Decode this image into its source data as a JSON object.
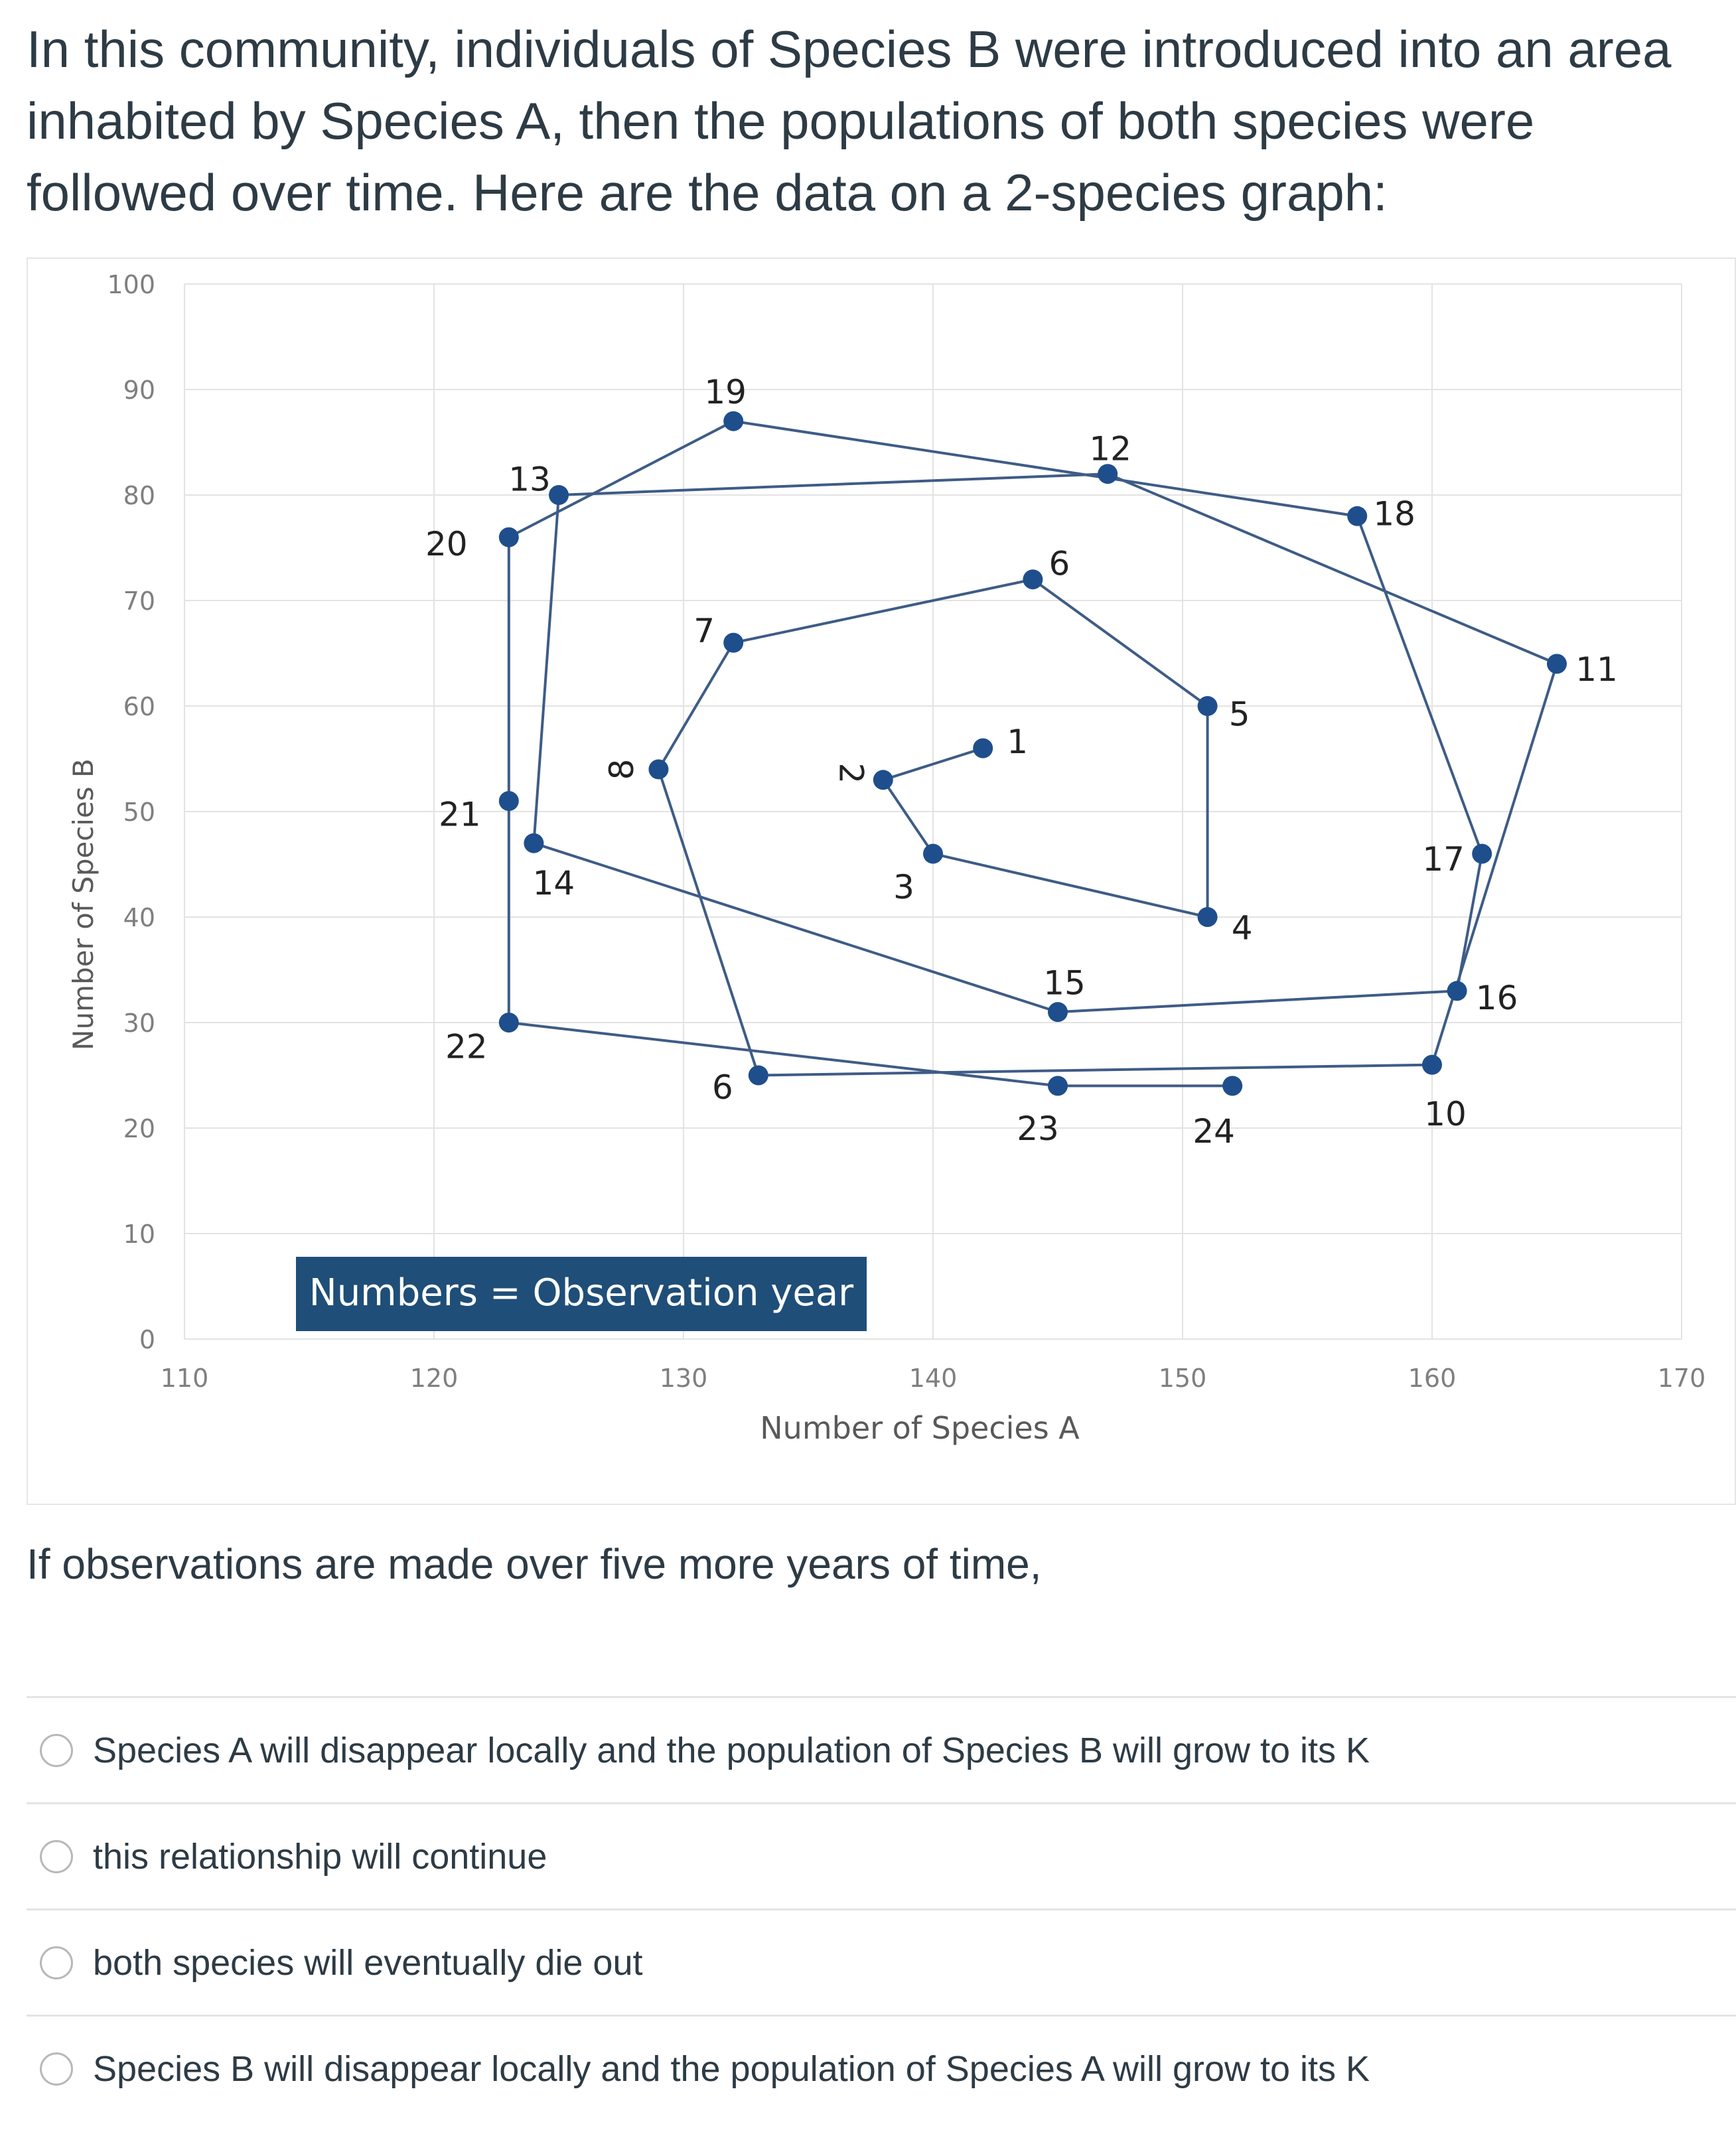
{
  "question": {
    "intro": "In this community, individuals of Species B were introduced into an area inhabited by Species A, then the populations of both species were followed over time.  Here are the data on a 2-species graph:",
    "stem": "If observations are made over five more years of time,"
  },
  "answers": [
    {
      "label": "Species A will disappear locally and the population of Species B will grow to its K",
      "selected": false
    },
    {
      "label": "this relationship will continue",
      "selected": false
    },
    {
      "label": "both species will eventually die out",
      "selected": false
    },
    {
      "label": "Species B will disappear locally and the population of Species A will grow to its K",
      "selected": false
    }
  ],
  "colors": {
    "series": "#3e5c86",
    "point": "#1f4e8c",
    "annotation_bg": "#1f4e79",
    "annotation_text": "#ffffff",
    "grid": "#e3e3e3",
    "axis_text": "#7f7f7f"
  },
  "chart_data": {
    "type": "scatter",
    "connected": true,
    "xlabel": "Number of Species A",
    "ylabel": "Number of Species B",
    "xlim": [
      110,
      170
    ],
    "ylim": [
      0,
      100
    ],
    "x_ticks": [
      "110",
      "120",
      "130",
      "140",
      "150",
      "160",
      "170"
    ],
    "y_ticks": [
      "0",
      "10",
      "20",
      "30",
      "40",
      "50",
      "60",
      "70",
      "80",
      "90",
      "100"
    ],
    "grid": true,
    "annotation": "Numbers = Observation year",
    "points": [
      {
        "label": "1",
        "x": 142,
        "y": 56
      },
      {
        "label": "2",
        "x": 138,
        "y": 53
      },
      {
        "label": "3",
        "x": 140,
        "y": 46
      },
      {
        "label": "4",
        "x": 151,
        "y": 40
      },
      {
        "label": "5",
        "x": 151,
        "y": 60
      },
      {
        "label": "6",
        "x": 144,
        "y": 72
      },
      {
        "label": "7",
        "x": 132,
        "y": 66
      },
      {
        "label": "8",
        "x": 129,
        "y": 54
      },
      {
        "label": "9",
        "x": 133,
        "y": 25
      },
      {
        "label": "10",
        "x": 160,
        "y": 26
      },
      {
        "label": "11",
        "x": 165,
        "y": 64
      },
      {
        "label": "12",
        "x": 147,
        "y": 82
      },
      {
        "label": "13",
        "x": 125,
        "y": 80
      },
      {
        "label": "14",
        "x": 124,
        "y": 47
      },
      {
        "label": "15",
        "x": 145,
        "y": 31
      },
      {
        "label": "16",
        "x": 161,
        "y": 33
      },
      {
        "label": "17",
        "x": 162,
        "y": 46
      },
      {
        "label": "18",
        "x": 157,
        "y": 78
      },
      {
        "label": "19",
        "x": 132,
        "y": 87
      },
      {
        "label": "20",
        "x": 123,
        "y": 76
      },
      {
        "label": "21",
        "x": 123,
        "y": 51
      },
      {
        "label": "22",
        "x": 123,
        "y": 30
      },
      {
        "label": "23",
        "x": 145,
        "y": 24
      },
      {
        "label": "24",
        "x": 152,
        "y": 24
      }
    ]
  }
}
